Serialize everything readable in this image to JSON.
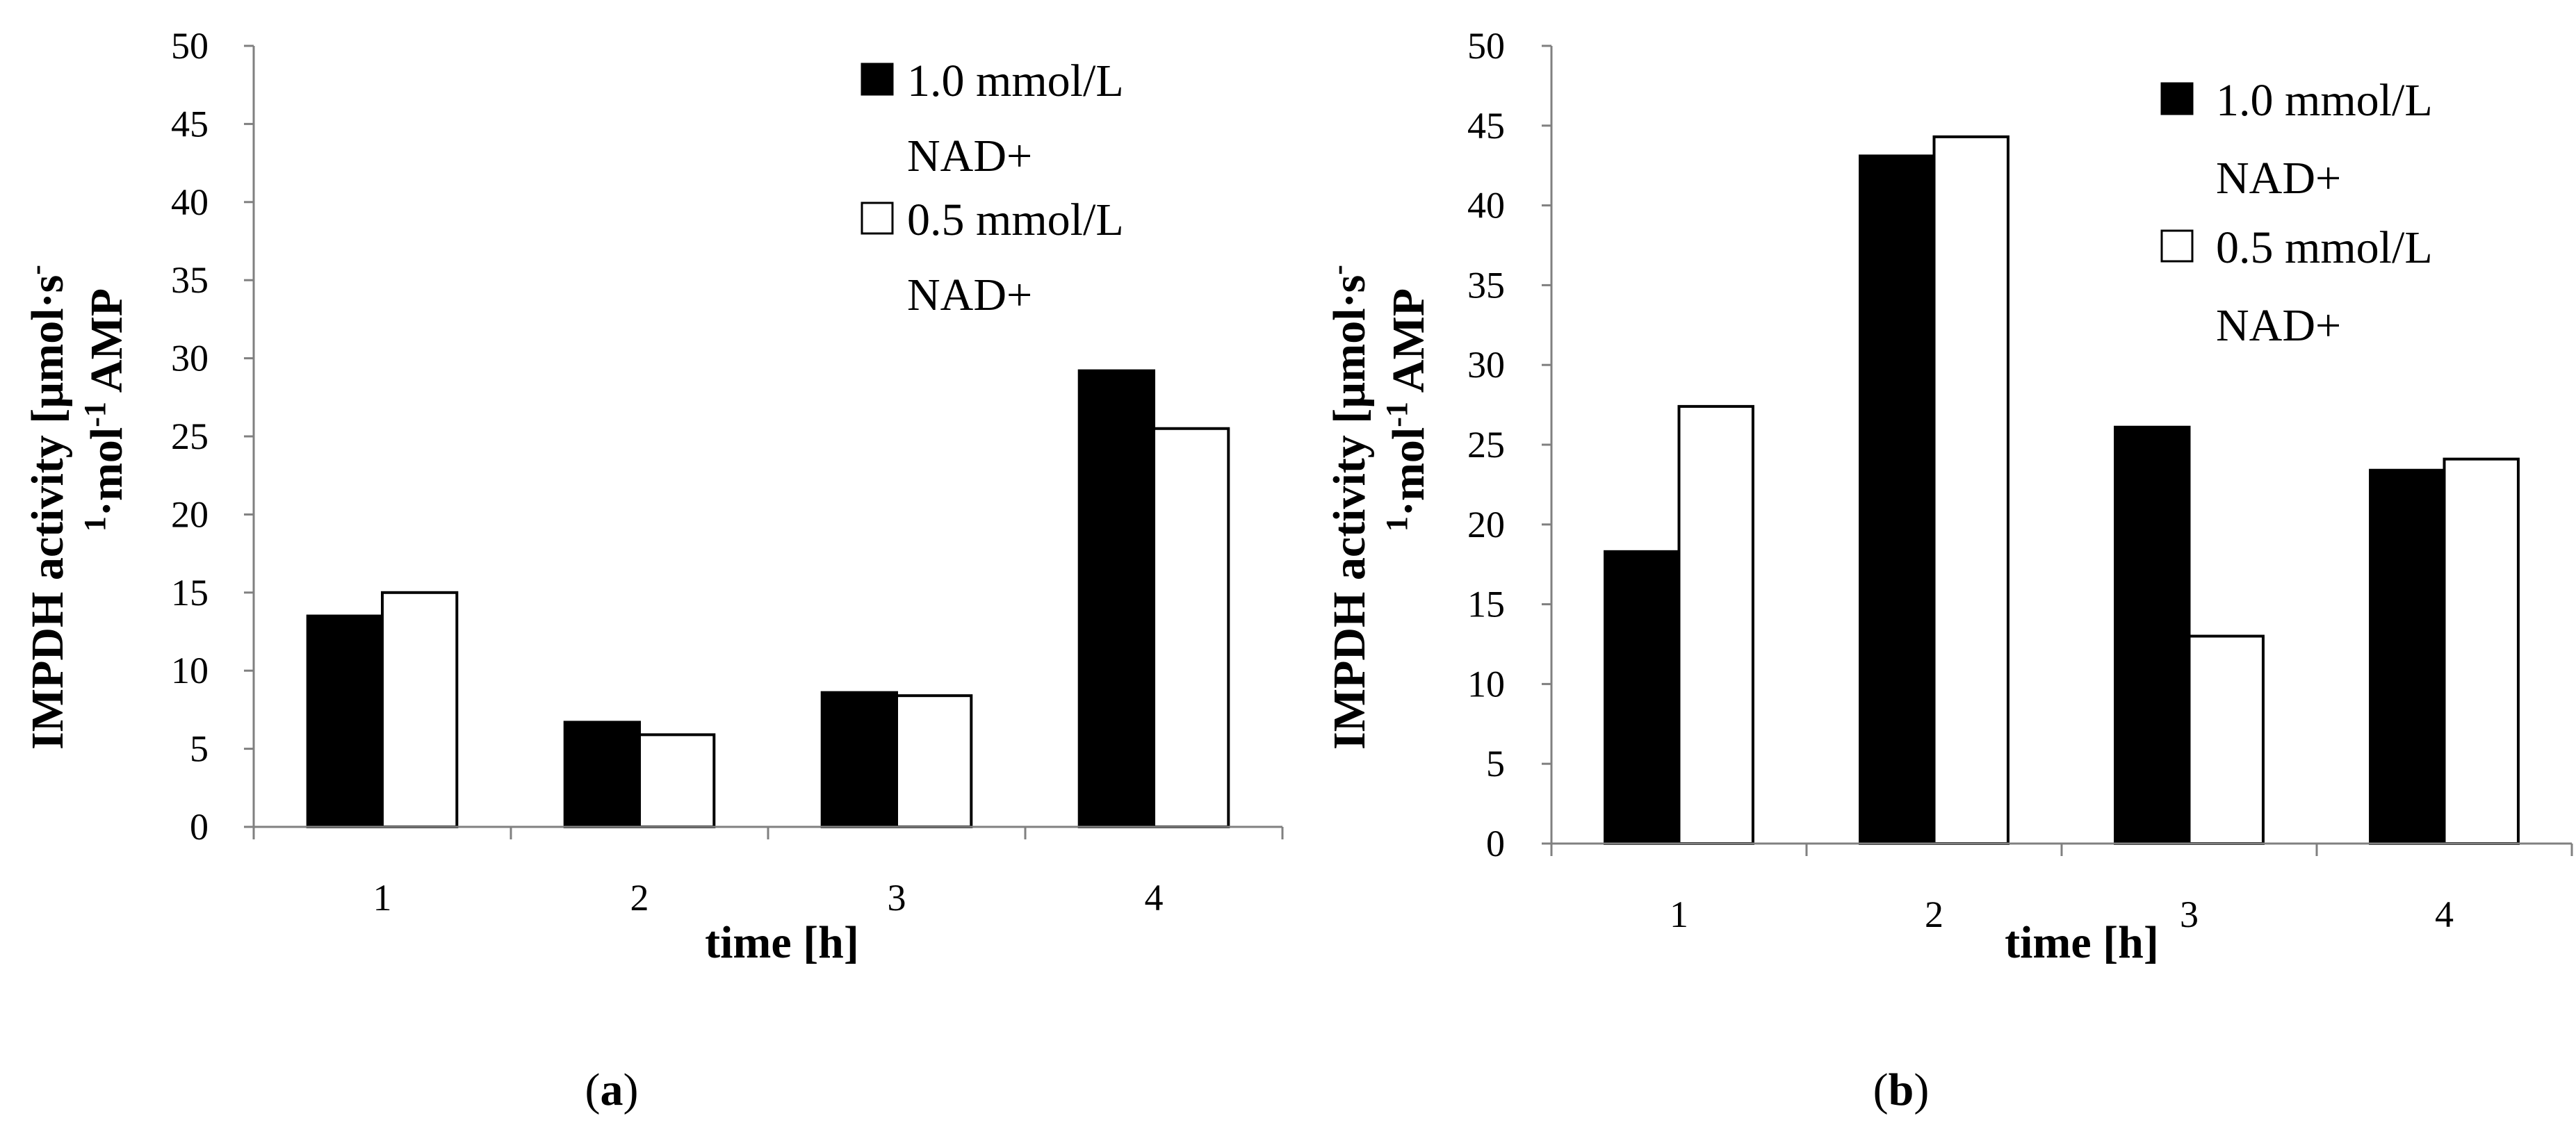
{
  "figure_labels": [
    {
      "open": "(",
      "letter": "a",
      "close": ")"
    },
    {
      "open": "(",
      "letter": "b",
      "close": ")"
    }
  ],
  "colors": {
    "series_1": "#000000",
    "series_2": "#ffffff",
    "stroke": "#000000",
    "axis": "#808080"
  },
  "chart_data": [
    {
      "type": "bar",
      "panel": "a",
      "title": "",
      "categories": [
        "1",
        "2",
        "3",
        "4"
      ],
      "series": [
        {
          "name": "1.0 mmol/L NAD+",
          "values": [
            13.5,
            6.7,
            8.6,
            29.2
          ]
        },
        {
          "name": "0.5 mmol/L NAD+",
          "values": [
            15.0,
            5.9,
            8.4,
            25.5
          ]
        }
      ],
      "legend": [
        {
          "line1": "1.0 mmol/L",
          "line2": "NAD+"
        },
        {
          "line1": "0.5 mmol/L",
          "line2": "NAD+"
        }
      ],
      "legend_position": "top-right",
      "xlabel": "time [h]",
      "ylabel_line1": "IMPDH activity [µmol·s",
      "ylabel_sup1": "-",
      "ylabel_line2_sup": "1",
      "ylabel_line2": "·mol",
      "ylabel_line2_sup2": "-1",
      "ylabel_line2_end": " AMP",
      "ylim": [
        0,
        50
      ],
      "yticks": [
        0,
        5,
        10,
        15,
        20,
        25,
        30,
        35,
        40,
        45,
        50
      ],
      "grid": false
    },
    {
      "type": "bar",
      "panel": "b",
      "title": "",
      "categories": [
        "1",
        "2",
        "3",
        "4"
      ],
      "series": [
        {
          "name": "1.0 mmol/L NAD+",
          "values": [
            18.3,
            43.1,
            26.1,
            23.4
          ]
        },
        {
          "name": "0.5 mmol/L NAD+",
          "values": [
            27.4,
            44.3,
            13.0,
            24.1
          ]
        }
      ],
      "legend": [
        {
          "line1": "1.0 mmol/L",
          "line2": "NAD+"
        },
        {
          "line1": "0.5 mmol/L",
          "line2": "NAD+"
        }
      ],
      "legend_position": "top-right",
      "xlabel": "time [h]",
      "ylabel_line1": "IMPDH activity [µmol·s",
      "ylabel_sup1": "-",
      "ylabel_line2_sup": "1",
      "ylabel_line2": "·mol",
      "ylabel_line2_sup2": "-1",
      "ylabel_line2_end": " AMP",
      "ylim": [
        0,
        50
      ],
      "yticks": [
        0,
        5,
        10,
        15,
        20,
        25,
        30,
        35,
        40,
        45,
        50
      ],
      "grid": false
    }
  ]
}
